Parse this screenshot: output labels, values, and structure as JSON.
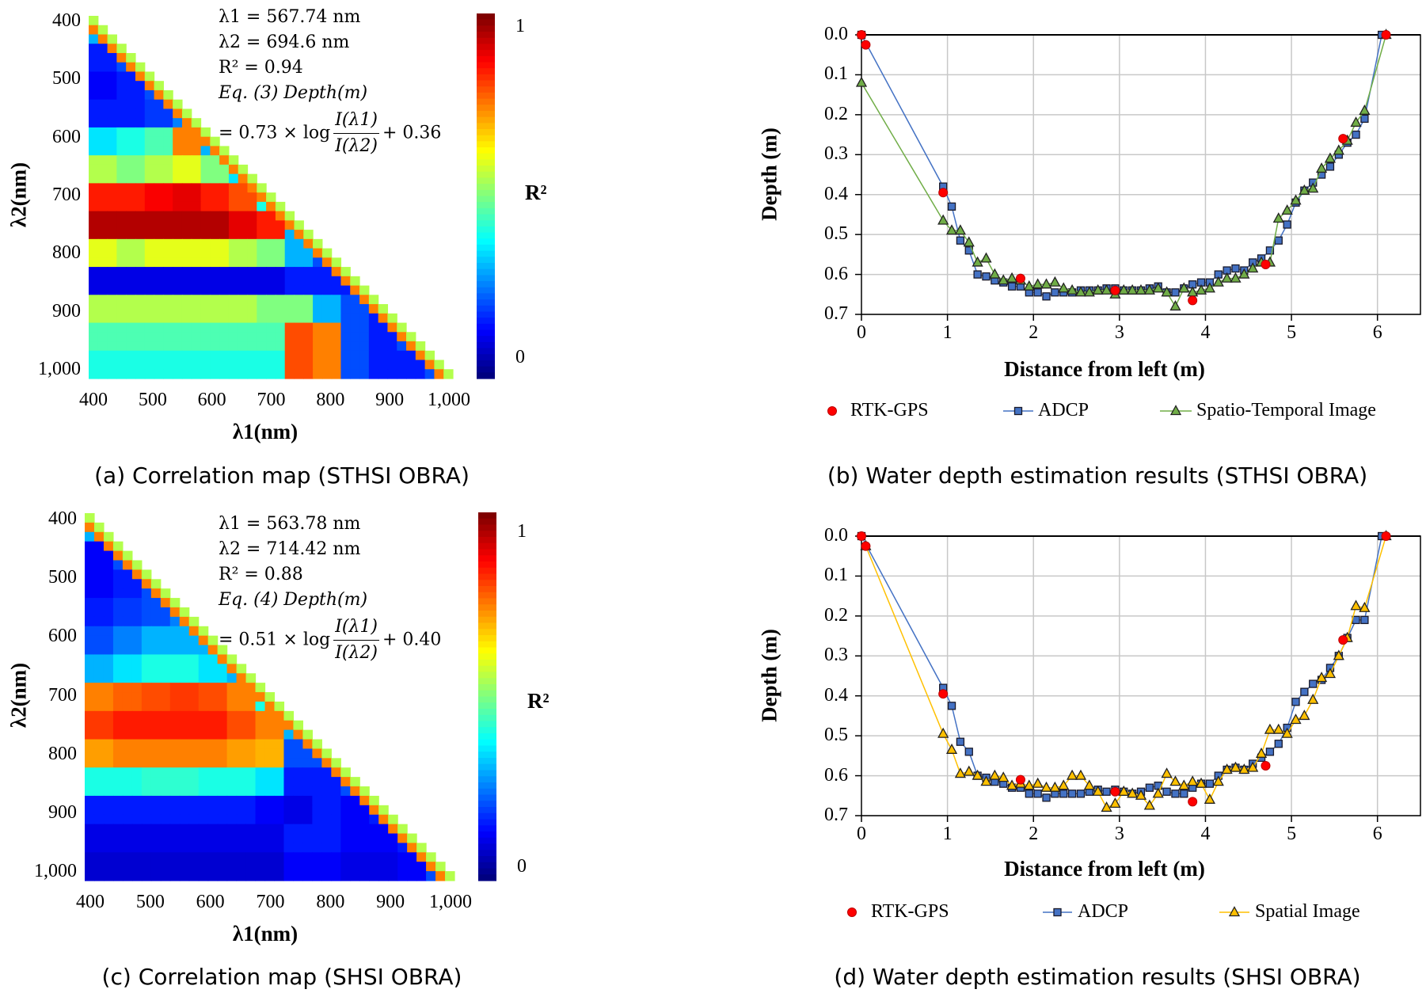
{
  "captions": {
    "a": "(a) Correlation map (STHSI OBRA)",
    "b": "(b) Water depth estimation results (STHSI OBRA)",
    "c": "(c) Correlation map (SHSI OBRA)",
    "d": "(d) Water depth estimation results (SHSI OBRA)"
  },
  "chart_data": [
    {
      "id": "a",
      "type": "heatmap",
      "xlabel": "λ1(nm)",
      "ylabel": "λ2(nm)",
      "colorbar_label": "R²",
      "colorbar_ticks": [
        "1",
        "0"
      ],
      "colormap": "jet",
      "x_ticks": [
        "400",
        "500",
        "600",
        "700",
        "800",
        "900",
        "1,000"
      ],
      "y_ticks": [
        "400",
        "500",
        "600",
        "700",
        "800",
        "900",
        "1,000"
      ],
      "grid_step_nm": 50,
      "x_values": [
        400,
        450,
        500,
        550,
        600,
        650,
        700,
        750,
        800,
        850,
        900,
        950,
        1000
      ],
      "y_values": [
        400,
        450,
        500,
        550,
        600,
        650,
        700,
        750,
        800,
        850,
        900,
        950,
        1000
      ],
      "values_lower_triangle": [
        [
          0.3
        ],
        [
          0.15,
          0.2
        ],
        [
          0.12,
          0.15,
          0.2
        ],
        [
          0.15,
          0.15,
          0.18,
          0.25
        ],
        [
          0.35,
          0.4,
          0.45,
          0.75,
          0.3
        ],
        [
          0.55,
          0.5,
          0.55,
          0.6,
          0.5,
          0.35
        ],
        [
          0.85,
          0.85,
          0.88,
          0.9,
          0.85,
          0.8,
          0.4
        ],
        [
          0.95,
          0.95,
          0.95,
          0.95,
          0.95,
          0.9,
          0.85,
          0.3
        ],
        [
          0.6,
          0.55,
          0.6,
          0.6,
          0.6,
          0.55,
          0.5,
          0.3,
          0.2
        ],
        [
          0.1,
          0.1,
          0.1,
          0.1,
          0.1,
          0.1,
          0.1,
          0.15,
          0.15,
          0.15
        ],
        [
          0.55,
          0.55,
          0.55,
          0.55,
          0.55,
          0.55,
          0.5,
          0.5,
          0.3,
          0.2,
          0.15
        ],
        [
          0.45,
          0.45,
          0.45,
          0.45,
          0.45,
          0.45,
          0.45,
          0.8,
          0.75,
          0.2,
          0.15,
          0.2
        ],
        [
          0.4,
          0.4,
          0.4,
          0.4,
          0.4,
          0.4,
          0.4,
          0.8,
          0.75,
          0.2,
          0.15,
          0.15,
          0.2
        ]
      ],
      "annotation": {
        "lambda1": "λ1 = 567.74 nm",
        "lambda2": "λ2 = 694.6 nm",
        "r2": "R² = 0.94",
        "eq_label": "Eq. (3)  Depth(m)",
        "coef": "= 0.73 × log",
        "numerator": "I(λ1)",
        "denominator": "I(λ2)",
        "intercept": "+ 0.36"
      }
    },
    {
      "id": "b",
      "type": "line",
      "xlabel": "Distance from left (m)",
      "ylabel": "Depth (m)",
      "xlim": [
        0,
        6.5
      ],
      "ylim": [
        0,
        0.7
      ],
      "y_inverted": true,
      "grid": true,
      "x_ticks": [
        "0",
        "1",
        "2",
        "3",
        "4",
        "5",
        "6"
      ],
      "y_ticks": [
        "0.0",
        "0.1",
        "0.2",
        "0.3",
        "0.4",
        "0.5",
        "0.6",
        "0.7"
      ],
      "legend_position": "bottom",
      "series": [
        {
          "name": "RTK-GPS",
          "marker": "circle",
          "color": "#ff0000",
          "line": false,
          "x": [
            0,
            0.05,
            0.95,
            1.85,
            2.95,
            3.85,
            4.7,
            5.6,
            6.1
          ],
          "y": [
            0,
            0.025,
            0.395,
            0.61,
            0.64,
            0.665,
            0.575,
            0.26,
            0
          ]
        },
        {
          "name": "ADCP",
          "marker": "square",
          "color": "#4472c4",
          "line": true,
          "x": [
            0,
            0.95,
            1.05,
            1.15,
            1.25,
            1.35,
            1.45,
            1.55,
            1.65,
            1.75,
            1.85,
            1.95,
            2.05,
            2.15,
            2.25,
            2.35,
            2.45,
            2.55,
            2.65,
            2.75,
            2.85,
            2.95,
            3.05,
            3.15,
            3.25,
            3.35,
            3.45,
            3.55,
            3.65,
            3.75,
            3.85,
            3.95,
            4.05,
            4.15,
            4.25,
            4.35,
            4.45,
            4.55,
            4.65,
            4.75,
            4.85,
            4.95,
            5.05,
            5.15,
            5.25,
            5.35,
            5.45,
            5.55,
            5.65,
            5.75,
            5.85,
            6.05
          ],
          "y": [
            0,
            0.38,
            0.43,
            0.515,
            0.54,
            0.6,
            0.605,
            0.615,
            0.62,
            0.63,
            0.63,
            0.645,
            0.645,
            0.655,
            0.645,
            0.645,
            0.645,
            0.64,
            0.64,
            0.64,
            0.635,
            0.635,
            0.64,
            0.64,
            0.64,
            0.635,
            0.63,
            0.645,
            0.645,
            0.635,
            0.625,
            0.62,
            0.62,
            0.6,
            0.59,
            0.585,
            0.59,
            0.57,
            0.56,
            0.54,
            0.515,
            0.475,
            0.42,
            0.39,
            0.37,
            0.35,
            0.33,
            0.3,
            0.27,
            0.25,
            0.21,
            0
          ]
        },
        {
          "name": "Spatio-Temporal Image",
          "marker": "triangle",
          "color": "#70ad47",
          "line": true,
          "x": [
            0,
            0.95,
            1.05,
            1.15,
            1.25,
            1.35,
            1.45,
            1.55,
            1.65,
            1.75,
            1.85,
            1.95,
            2.05,
            2.15,
            2.25,
            2.35,
            2.45,
            2.55,
            2.65,
            2.75,
            2.85,
            2.95,
            3.05,
            3.15,
            3.25,
            3.35,
            3.45,
            3.55,
            3.65,
            3.75,
            3.85,
            3.95,
            4.05,
            4.15,
            4.25,
            4.35,
            4.45,
            4.55,
            4.65,
            4.75,
            4.85,
            4.95,
            5.05,
            5.15,
            5.25,
            5.35,
            5.45,
            5.55,
            5.65,
            5.75,
            5.85,
            6.1
          ],
          "y": [
            0.12,
            0.465,
            0.49,
            0.49,
            0.52,
            0.57,
            0.56,
            0.6,
            0.615,
            0.61,
            0.615,
            0.63,
            0.625,
            0.625,
            0.62,
            0.635,
            0.64,
            0.645,
            0.645,
            0.64,
            0.64,
            0.65,
            0.64,
            0.64,
            0.64,
            0.64,
            0.635,
            0.645,
            0.68,
            0.635,
            0.645,
            0.64,
            0.635,
            0.62,
            0.61,
            0.61,
            0.6,
            0.585,
            0.57,
            0.57,
            0.46,
            0.44,
            0.415,
            0.39,
            0.385,
            0.335,
            0.31,
            0.29,
            0.265,
            0.22,
            0.19,
            0
          ]
        }
      ]
    },
    {
      "id": "c",
      "type": "heatmap",
      "xlabel": "λ1(nm)",
      "ylabel": "λ2(nm)",
      "colorbar_label": "R²",
      "colorbar_ticks": [
        "1",
        "0"
      ],
      "colormap": "jet",
      "x_ticks": [
        "400",
        "500",
        "600",
        "700",
        "800",
        "900",
        "1,000"
      ],
      "y_ticks": [
        "400",
        "500",
        "600",
        "700",
        "800",
        "900",
        "1,000"
      ],
      "grid_step_nm": 50,
      "x_values": [
        400,
        450,
        500,
        550,
        600,
        650,
        700,
        750,
        800,
        850,
        900,
        950,
        1000
      ],
      "y_values": [
        400,
        450,
        500,
        550,
        600,
        650,
        700,
        750,
        800,
        850,
        900,
        950,
        1000
      ],
      "values_lower_triangle": [
        [
          0.3
        ],
        [
          0.12,
          0.2
        ],
        [
          0.12,
          0.15,
          0.2
        ],
        [
          0.15,
          0.18,
          0.2,
          0.25
        ],
        [
          0.2,
          0.25,
          0.3,
          0.3,
          0.3
        ],
        [
          0.3,
          0.35,
          0.4,
          0.4,
          0.35,
          0.3
        ],
        [
          0.75,
          0.78,
          0.8,
          0.82,
          0.8,
          0.75,
          0.4
        ],
        [
          0.82,
          0.85,
          0.85,
          0.85,
          0.85,
          0.8,
          0.75,
          0.3
        ],
        [
          0.72,
          0.75,
          0.75,
          0.75,
          0.75,
          0.72,
          0.7,
          0.2,
          0.2
        ],
        [
          0.4,
          0.4,
          0.42,
          0.42,
          0.4,
          0.4,
          0.35,
          0.15,
          0.15,
          0.2
        ],
        [
          0.15,
          0.15,
          0.15,
          0.15,
          0.15,
          0.15,
          0.12,
          0.1,
          0.15,
          0.12,
          0.15
        ],
        [
          0.1,
          0.1,
          0.1,
          0.1,
          0.1,
          0.1,
          0.1,
          0.15,
          0.15,
          0.12,
          0.12,
          0.15
        ],
        [
          0.08,
          0.08,
          0.08,
          0.08,
          0.08,
          0.08,
          0.08,
          0.12,
          0.12,
          0.1,
          0.1,
          0.12,
          0.2
        ]
      ],
      "annotation": {
        "lambda1": "λ1 = 563.78 nm",
        "lambda2": "λ2 = 714.42 nm",
        "r2": "R² = 0.88",
        "eq_label": "Eq. (4)  Depth(m)",
        "coef": "= 0.51 × log",
        "numerator": "I(λ1)",
        "denominator": "I(λ2)",
        "intercept": "+ 0.40"
      }
    },
    {
      "id": "d",
      "type": "line",
      "xlabel": "Distance from left (m)",
      "ylabel": "Depth (m)",
      "xlim": [
        0,
        6.5
      ],
      "ylim": [
        0,
        0.7
      ],
      "y_inverted": true,
      "grid": true,
      "x_ticks": [
        "0",
        "1",
        "2",
        "3",
        "4",
        "5",
        "6"
      ],
      "y_ticks": [
        "0.0",
        "0.1",
        "0.2",
        "0.3",
        "0.4",
        "0.5",
        "0.6",
        "0.7"
      ],
      "legend_position": "bottom",
      "series": [
        {
          "name": "RTK-GPS",
          "marker": "circle",
          "color": "#ff0000",
          "line": false,
          "x": [
            0,
            0.05,
            0.95,
            1.85,
            2.95,
            3.85,
            4.7,
            5.6,
            6.1
          ],
          "y": [
            0,
            0.025,
            0.395,
            0.61,
            0.64,
            0.665,
            0.575,
            0.26,
            0
          ]
        },
        {
          "name": "ADCP",
          "marker": "square",
          "color": "#4472c4",
          "line": true,
          "x": [
            0,
            0.95,
            1.05,
            1.15,
            1.25,
            1.35,
            1.45,
            1.55,
            1.65,
            1.75,
            1.85,
            1.95,
            2.05,
            2.15,
            2.25,
            2.35,
            2.45,
            2.55,
            2.65,
            2.75,
            2.85,
            2.95,
            3.05,
            3.15,
            3.25,
            3.35,
            3.45,
            3.55,
            3.65,
            3.75,
            3.85,
            3.95,
            4.05,
            4.15,
            4.25,
            4.35,
            4.45,
            4.55,
            4.65,
            4.75,
            4.85,
            4.95,
            5.05,
            5.15,
            5.25,
            5.35,
            5.45,
            5.55,
            5.65,
            5.75,
            5.85,
            6.05
          ],
          "y": [
            0,
            0.38,
            0.425,
            0.515,
            0.54,
            0.6,
            0.605,
            0.615,
            0.62,
            0.63,
            0.63,
            0.645,
            0.645,
            0.655,
            0.645,
            0.645,
            0.645,
            0.645,
            0.64,
            0.635,
            0.64,
            0.635,
            0.64,
            0.645,
            0.64,
            0.63,
            0.625,
            0.64,
            0.645,
            0.645,
            0.63,
            0.62,
            0.62,
            0.6,
            0.585,
            0.58,
            0.585,
            0.57,
            0.555,
            0.54,
            0.52,
            0.48,
            0.415,
            0.39,
            0.37,
            0.36,
            0.33,
            0.3,
            0.255,
            0.21,
            0.21,
            0
          ]
        },
        {
          "name": "Spatial Image",
          "marker": "triangle",
          "color": "#ffc000",
          "line": true,
          "x": [
            0.05,
            0.95,
            1.05,
            1.15,
            1.25,
            1.35,
            1.45,
            1.55,
            1.65,
            1.75,
            1.85,
            1.95,
            2.05,
            2.15,
            2.25,
            2.35,
            2.45,
            2.55,
            2.65,
            2.75,
            2.85,
            2.95,
            3.05,
            3.15,
            3.25,
            3.35,
            3.45,
            3.55,
            3.65,
            3.75,
            3.85,
            3.95,
            4.05,
            4.15,
            4.25,
            4.35,
            4.45,
            4.55,
            4.65,
            4.75,
            4.85,
            4.95,
            5.05,
            5.15,
            5.25,
            5.35,
            5.45,
            5.55,
            5.65,
            5.75,
            5.85,
            6.1
          ],
          "y": [
            0.025,
            0.495,
            0.535,
            0.595,
            0.59,
            0.6,
            0.615,
            0.6,
            0.605,
            0.625,
            0.62,
            0.625,
            0.62,
            0.63,
            0.63,
            0.625,
            0.6,
            0.6,
            0.625,
            0.64,
            0.68,
            0.67,
            0.64,
            0.645,
            0.65,
            0.675,
            0.645,
            0.595,
            0.615,
            0.625,
            0.615,
            0.62,
            0.66,
            0.615,
            0.585,
            0.58,
            0.585,
            0.58,
            0.545,
            0.485,
            0.485,
            0.495,
            0.46,
            0.45,
            0.41,
            0.355,
            0.345,
            0.3,
            0.255,
            0.175,
            0.18,
            0
          ]
        }
      ]
    }
  ]
}
